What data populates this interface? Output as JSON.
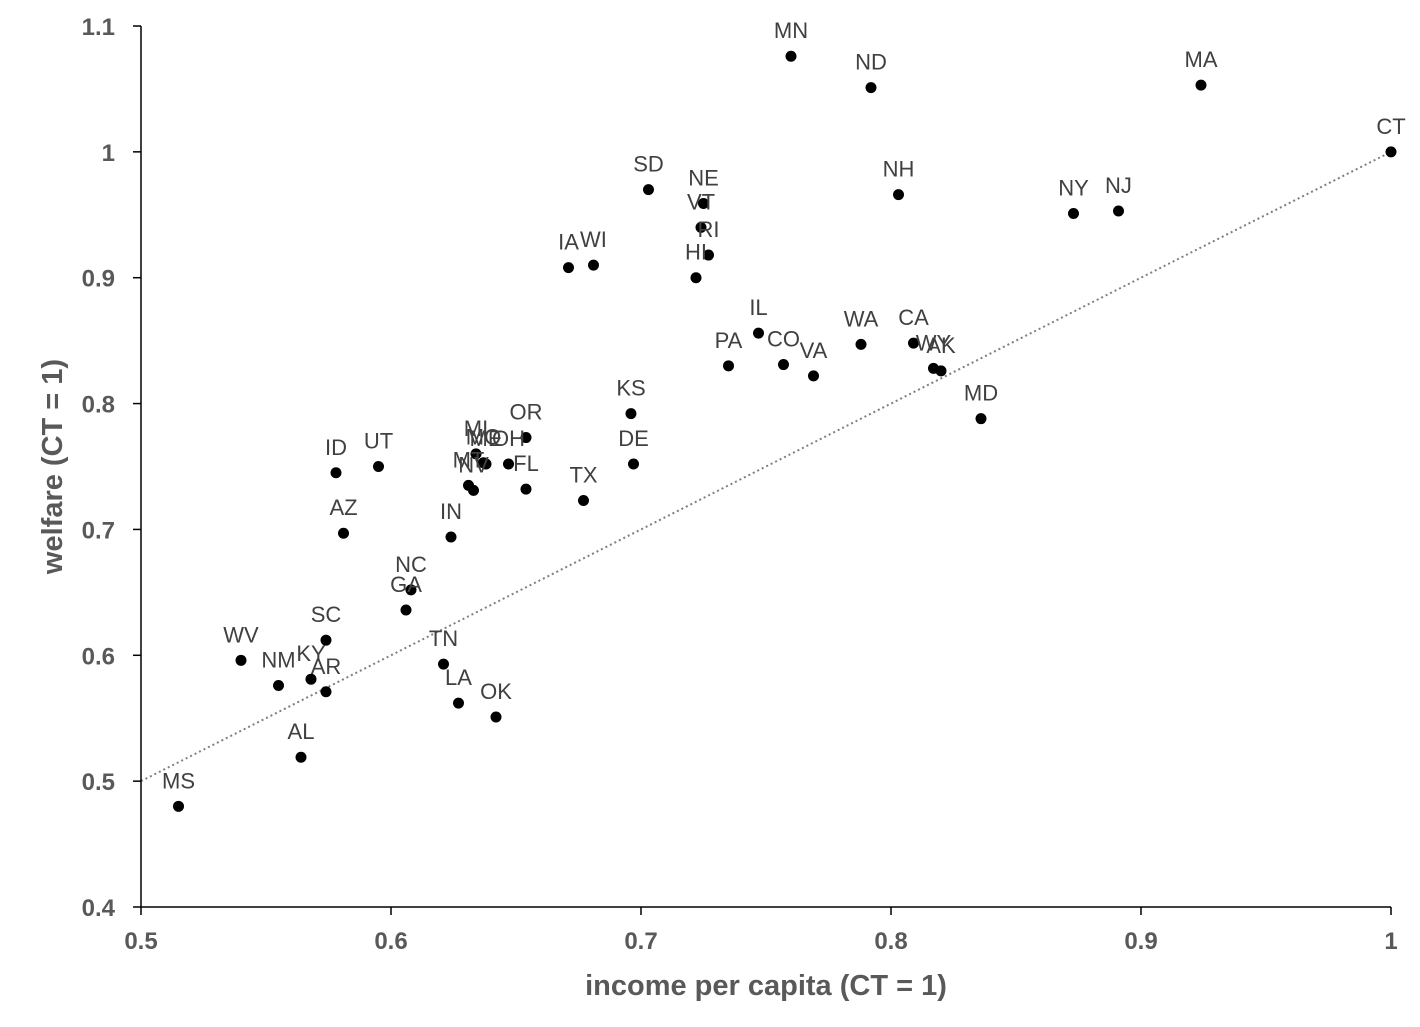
{
  "chart_data": {
    "type": "scatter",
    "title": "",
    "xlabel": "income per capita (CT = 1)",
    "ylabel": "welfare (CT = 1)",
    "xlim": [
      0.5,
      1
    ],
    "ylim": [
      0.4,
      1.1
    ],
    "xticks": [
      "0.5",
      "0.6",
      "0.7",
      "0.8",
      "0.9",
      "1"
    ],
    "yticks": [
      "0.4",
      "0.5",
      "0.6",
      "0.7",
      "0.8",
      "0.9",
      "1",
      "1.1"
    ],
    "grid": false,
    "legend": "none",
    "marker_color": "#000000",
    "trendline": {
      "style": "dotted",
      "color": "#7f7f7f",
      "from": [
        0.5,
        0.5
      ],
      "to": [
        1,
        1
      ]
    },
    "points": [
      {
        "label": "MN",
        "x": 0.76,
        "y": 1.076
      },
      {
        "label": "ND",
        "x": 0.792,
        "y": 1.051
      },
      {
        "label": "MA",
        "x": 0.924,
        "y": 1.053
      },
      {
        "label": "CT",
        "x": 1.0,
        "y": 1.0
      },
      {
        "label": "NH",
        "x": 0.803,
        "y": 0.966
      },
      {
        "label": "NY",
        "x": 0.873,
        "y": 0.951
      },
      {
        "label": "NJ",
        "x": 0.891,
        "y": 0.953
      },
      {
        "label": "SD",
        "x": 0.703,
        "y": 0.97
      },
      {
        "label": "NE",
        "x": 0.725,
        "y": 0.959
      },
      {
        "label": "VT",
        "x": 0.724,
        "y": 0.94
      },
      {
        "label": "RI",
        "x": 0.727,
        "y": 0.918
      },
      {
        "label": "HI",
        "x": 0.722,
        "y": 0.9
      },
      {
        "label": "IA",
        "x": 0.671,
        "y": 0.908
      },
      {
        "label": "WI",
        "x": 0.681,
        "y": 0.91
      },
      {
        "label": "IL",
        "x": 0.747,
        "y": 0.856
      },
      {
        "label": "CO",
        "x": 0.757,
        "y": 0.831
      },
      {
        "label": "VA",
        "x": 0.769,
        "y": 0.822
      },
      {
        "label": "PA",
        "x": 0.735,
        "y": 0.83
      },
      {
        "label": "WA",
        "x": 0.788,
        "y": 0.847
      },
      {
        "label": "CA",
        "x": 0.809,
        "y": 0.848
      },
      {
        "label": "WY",
        "x": 0.817,
        "y": 0.828
      },
      {
        "label": "AK",
        "x": 0.82,
        "y": 0.826
      },
      {
        "label": "MD",
        "x": 0.836,
        "y": 0.788
      },
      {
        "label": "KS",
        "x": 0.696,
        "y": 0.792
      },
      {
        "label": "DE",
        "x": 0.697,
        "y": 0.752
      },
      {
        "label": "TX",
        "x": 0.677,
        "y": 0.723
      },
      {
        "label": "OR",
        "x": 0.654,
        "y": 0.773
      },
      {
        "label": "FL",
        "x": 0.654,
        "y": 0.732
      },
      {
        "label": "OH",
        "x": 0.647,
        "y": 0.752
      },
      {
        "label": "MI",
        "x": 0.634,
        "y": 0.76
      },
      {
        "label": "ME",
        "x": 0.638,
        "y": 0.752
      },
      {
        "label": "MT",
        "x": 0.631,
        "y": 0.735
      },
      {
        "label": "MO",
        "x": 0.637,
        "y": 0.753
      },
      {
        "label": "NV",
        "x": 0.633,
        "y": 0.731
      },
      {
        "label": "IN",
        "x": 0.624,
        "y": 0.694
      },
      {
        "label": "ID",
        "x": 0.578,
        "y": 0.745
      },
      {
        "label": "UT",
        "x": 0.595,
        "y": 0.75
      },
      {
        "label": "AZ",
        "x": 0.581,
        "y": 0.697
      },
      {
        "label": "NC",
        "x": 0.608,
        "y": 0.652
      },
      {
        "label": "GA",
        "x": 0.606,
        "y": 0.636
      },
      {
        "label": "SC",
        "x": 0.574,
        "y": 0.612
      },
      {
        "label": "WV",
        "x": 0.54,
        "y": 0.596
      },
      {
        "label": "NM",
        "x": 0.555,
        "y": 0.576
      },
      {
        "label": "KY",
        "x": 0.568,
        "y": 0.581
      },
      {
        "label": "AR",
        "x": 0.574,
        "y": 0.571
      },
      {
        "label": "TN",
        "x": 0.621,
        "y": 0.593
      },
      {
        "label": "LA",
        "x": 0.627,
        "y": 0.562
      },
      {
        "label": "OK",
        "x": 0.642,
        "y": 0.551
      },
      {
        "label": "AL",
        "x": 0.564,
        "y": 0.519
      },
      {
        "label": "MS",
        "x": 0.515,
        "y": 0.48
      }
    ]
  }
}
